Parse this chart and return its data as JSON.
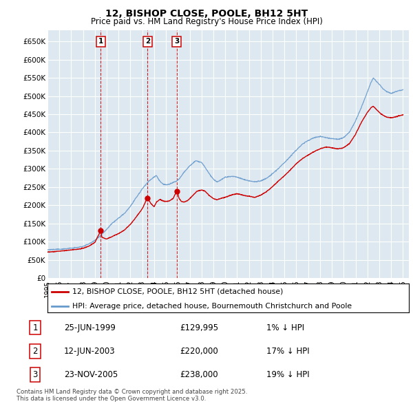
{
  "title": "12, BISHOP CLOSE, POOLE, BH12 5HT",
  "subtitle": "Price paid vs. HM Land Registry's House Price Index (HPI)",
  "xlim_start": 1995.0,
  "xlim_end": 2025.5,
  "ylim": [
    0,
    680000
  ],
  "yticks": [
    0,
    50000,
    100000,
    150000,
    200000,
    250000,
    300000,
    350000,
    400000,
    450000,
    500000,
    550000,
    600000,
    650000
  ],
  "ytick_labels": [
    "£0",
    "£50K",
    "£100K",
    "£150K",
    "£200K",
    "£250K",
    "£300K",
    "£350K",
    "£400K",
    "£450K",
    "£500K",
    "£550K",
    "£600K",
    "£650K"
  ],
  "background_color": "#ffffff",
  "plot_bg_color": "#dde8f0",
  "grid_color": "#ffffff",
  "hpi_color": "#6699cc",
  "price_color": "#cc0000",
  "transactions": [
    {
      "num": 1,
      "date_dec": 1999.48,
      "price": 129995,
      "label": "1",
      "date_str": "25-JUN-1999",
      "price_str": "£129,995",
      "pct": "1%"
    },
    {
      "num": 2,
      "date_dec": 2003.44,
      "price": 220000,
      "label": "2",
      "date_str": "12-JUN-2003",
      "price_str": "£220,000",
      "pct": "17%"
    },
    {
      "num": 3,
      "date_dec": 2005.9,
      "price": 238000,
      "label": "3",
      "date_str": "23-NOV-2005",
      "price_str": "£238,000",
      "pct": "19%"
    }
  ],
  "legend_label_red": "12, BISHOP CLOSE, POOLE, BH12 5HT (detached house)",
  "legend_label_blue": "HPI: Average price, detached house, Bournemouth Christchurch and Poole",
  "footer": "Contains HM Land Registry data © Crown copyright and database right 2025.\nThis data is licensed under the Open Government Licence v3.0.",
  "xtick_years": [
    1995,
    1996,
    1997,
    1998,
    1999,
    2000,
    2001,
    2002,
    2003,
    2004,
    2005,
    2006,
    2007,
    2008,
    2009,
    2010,
    2011,
    2012,
    2013,
    2014,
    2015,
    2016,
    2017,
    2018,
    2019,
    2020,
    2021,
    2022,
    2023,
    2024,
    2025
  ],
  "hpi_anchors": [
    [
      1995.0,
      78000
    ],
    [
      1995.5,
      79000
    ],
    [
      1996.0,
      80000
    ],
    [
      1996.5,
      81500
    ],
    [
      1997.0,
      83000
    ],
    [
      1997.5,
      85000
    ],
    [
      1998.0,
      88000
    ],
    [
      1998.5,
      95000
    ],
    [
      1999.0,
      105000
    ],
    [
      1999.5,
      118000
    ],
    [
      2000.0,
      135000
    ],
    [
      2000.5,
      152000
    ],
    [
      2001.0,
      165000
    ],
    [
      2001.5,
      178000
    ],
    [
      2002.0,
      198000
    ],
    [
      2002.5,
      222000
    ],
    [
      2003.0,
      245000
    ],
    [
      2003.5,
      265000
    ],
    [
      2004.0,
      278000
    ],
    [
      2004.2,
      282000
    ],
    [
      2004.4,
      270000
    ],
    [
      2004.6,
      262000
    ],
    [
      2004.8,
      258000
    ],
    [
      2005.0,
      256000
    ],
    [
      2005.3,
      258000
    ],
    [
      2005.6,
      262000
    ],
    [
      2005.9,
      266000
    ],
    [
      2006.2,
      275000
    ],
    [
      2006.5,
      290000
    ],
    [
      2007.0,
      308000
    ],
    [
      2007.5,
      322000
    ],
    [
      2008.0,
      318000
    ],
    [
      2008.3,
      305000
    ],
    [
      2008.6,
      290000
    ],
    [
      2009.0,
      272000
    ],
    [
      2009.3,
      265000
    ],
    [
      2009.6,
      270000
    ],
    [
      2010.0,
      278000
    ],
    [
      2010.5,
      280000
    ],
    [
      2011.0,
      278000
    ],
    [
      2011.5,
      272000
    ],
    [
      2012.0,
      268000
    ],
    [
      2012.5,
      265000
    ],
    [
      2013.0,
      268000
    ],
    [
      2013.5,
      275000
    ],
    [
      2014.0,
      288000
    ],
    [
      2014.5,
      302000
    ],
    [
      2015.0,
      318000
    ],
    [
      2015.5,
      335000
    ],
    [
      2016.0,
      352000
    ],
    [
      2016.5,
      368000
    ],
    [
      2017.0,
      378000
    ],
    [
      2017.5,
      385000
    ],
    [
      2018.0,
      388000
    ],
    [
      2018.5,
      385000
    ],
    [
      2019.0,
      382000
    ],
    [
      2019.5,
      380000
    ],
    [
      2020.0,
      385000
    ],
    [
      2020.5,
      400000
    ],
    [
      2021.0,
      430000
    ],
    [
      2021.5,
      468000
    ],
    [
      2022.0,
      510000
    ],
    [
      2022.3,
      535000
    ],
    [
      2022.5,
      548000
    ],
    [
      2022.7,
      540000
    ],
    [
      2023.0,
      530000
    ],
    [
      2023.3,
      518000
    ],
    [
      2023.6,
      510000
    ],
    [
      2024.0,
      505000
    ],
    [
      2024.3,
      508000
    ],
    [
      2024.6,
      512000
    ],
    [
      2025.0,
      515000
    ]
  ],
  "price_anchors": [
    [
      1995.0,
      72000
    ],
    [
      1995.5,
      73000
    ],
    [
      1996.0,
      74500
    ],
    [
      1996.5,
      76000
    ],
    [
      1997.0,
      77500
    ],
    [
      1997.5,
      79000
    ],
    [
      1998.0,
      82000
    ],
    [
      1998.5,
      88000
    ],
    [
      1999.0,
      98000
    ],
    [
      1999.48,
      129995
    ],
    [
      1999.6,
      112000
    ],
    [
      1999.9,
      108000
    ],
    [
      2000.0,
      108000
    ],
    [
      2000.5,
      115000
    ],
    [
      2001.0,
      122000
    ],
    [
      2001.5,
      132000
    ],
    [
      2002.0,
      148000
    ],
    [
      2002.5,
      168000
    ],
    [
      2003.0,
      190000
    ],
    [
      2003.44,
      220000
    ],
    [
      2003.7,
      205000
    ],
    [
      2003.9,
      198000
    ],
    [
      2004.0,
      195000
    ],
    [
      2004.2,
      208000
    ],
    [
      2004.5,
      215000
    ],
    [
      2004.7,
      212000
    ],
    [
      2005.0,
      210000
    ],
    [
      2005.3,
      212000
    ],
    [
      2005.6,
      218000
    ],
    [
      2005.9,
      238000
    ],
    [
      2006.0,
      232000
    ],
    [
      2006.1,
      218000
    ],
    [
      2006.3,
      210000
    ],
    [
      2006.5,
      208000
    ],
    [
      2006.8,
      212000
    ],
    [
      2007.0,
      218000
    ],
    [
      2007.3,
      228000
    ],
    [
      2007.6,
      238000
    ],
    [
      2008.0,
      242000
    ],
    [
      2008.3,
      238000
    ],
    [
      2008.6,
      228000
    ],
    [
      2009.0,
      218000
    ],
    [
      2009.3,
      215000
    ],
    [
      2009.6,
      218000
    ],
    [
      2010.0,
      222000
    ],
    [
      2010.5,
      228000
    ],
    [
      2011.0,
      232000
    ],
    [
      2011.5,
      228000
    ],
    [
      2012.0,
      225000
    ],
    [
      2012.5,
      222000
    ],
    [
      2013.0,
      228000
    ],
    [
      2013.5,
      238000
    ],
    [
      2014.0,
      252000
    ],
    [
      2014.5,
      268000
    ],
    [
      2015.0,
      282000
    ],
    [
      2015.5,
      298000
    ],
    [
      2016.0,
      315000
    ],
    [
      2016.5,
      328000
    ],
    [
      2017.0,
      338000
    ],
    [
      2017.5,
      348000
    ],
    [
      2018.0,
      355000
    ],
    [
      2018.5,
      360000
    ],
    [
      2019.0,
      358000
    ],
    [
      2019.5,
      355000
    ],
    [
      2020.0,
      358000
    ],
    [
      2020.5,
      370000
    ],
    [
      2021.0,
      395000
    ],
    [
      2021.5,
      428000
    ],
    [
      2022.0,
      455000
    ],
    [
      2022.3,
      468000
    ],
    [
      2022.5,
      472000
    ],
    [
      2022.7,
      465000
    ],
    [
      2023.0,
      455000
    ],
    [
      2023.3,
      448000
    ],
    [
      2023.6,
      442000
    ],
    [
      2024.0,
      440000
    ],
    [
      2024.3,
      442000
    ],
    [
      2024.6,
      445000
    ],
    [
      2025.0,
      448000
    ]
  ]
}
